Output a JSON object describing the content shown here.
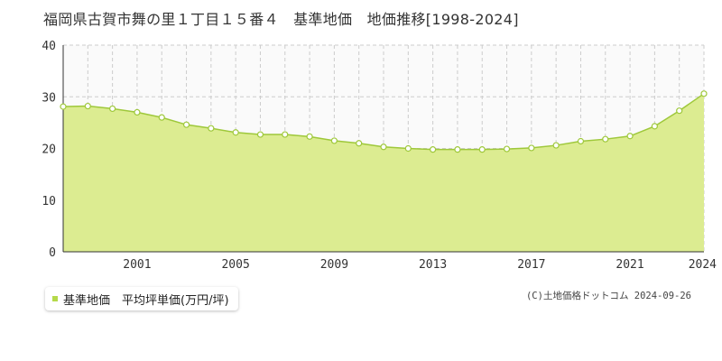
{
  "title": "福岡県古賀市舞の里１丁目１５番４　基準地価　地価推移[1998-2024]",
  "legend": {
    "label": "基準地価　平均坪単価(万円/坪)"
  },
  "copyright": "(C)土地価格ドットコム 2024-09-26",
  "colors": {
    "fill": "#dcec91",
    "line": "#9ec83a",
    "marker_fill": "#ffffff",
    "legend_marker": "#b5d94a",
    "plot_bg": "#fafafa",
    "grid": "#cccccc"
  },
  "chart_data": {
    "type": "area",
    "x": [
      1998,
      1999,
      2000,
      2001,
      2002,
      2003,
      2004,
      2005,
      2006,
      2007,
      2008,
      2009,
      2010,
      2011,
      2012,
      2013,
      2014,
      2015,
      2016,
      2017,
      2018,
      2019,
      2020,
      2021,
      2022,
      2023,
      2024
    ],
    "series": [
      {
        "name": "基準地価　平均坪単価(万円/坪)",
        "values": [
          28.1,
          28.2,
          27.7,
          27.0,
          26.0,
          24.6,
          23.9,
          23.1,
          22.7,
          22.7,
          22.3,
          21.5,
          21.0,
          20.3,
          20.0,
          19.8,
          19.8,
          19.8,
          19.9,
          20.1,
          20.6,
          21.4,
          21.8,
          22.4,
          24.3,
          27.3,
          30.6
        ]
      }
    ],
    "x_tick_labels": [
      "2001",
      "2005",
      "2009",
      "2013",
      "2017",
      "2021",
      "2024"
    ],
    "y_ticks": [
      0,
      10,
      20,
      30,
      40
    ],
    "ylim": [
      0,
      40
    ],
    "xlim": [
      1998,
      2024
    ],
    "grid": true,
    "legend_position": "bottom-left"
  }
}
